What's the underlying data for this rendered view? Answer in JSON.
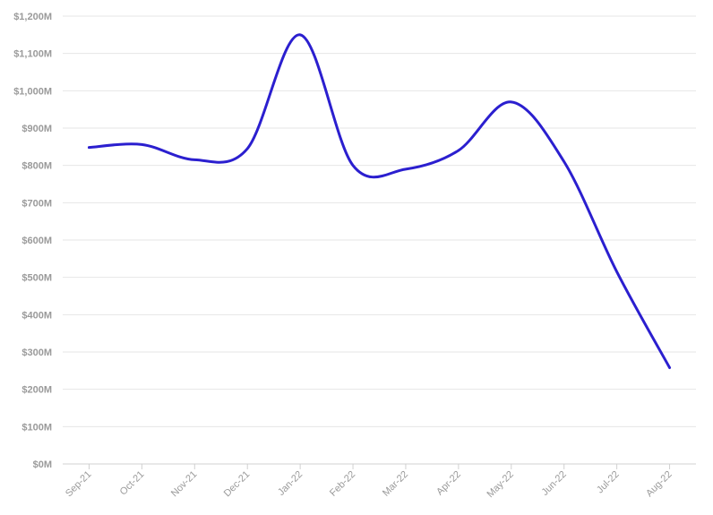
{
  "chart_data": {
    "type": "line",
    "title": "",
    "xlabel": "",
    "ylabel": "",
    "categories": [
      "Sep-21",
      "Oct-21",
      "Nov-21",
      "Dec-21",
      "Jan-22",
      "Feb-22",
      "Mar-22",
      "Apr-22",
      "May-22",
      "Jun-22",
      "Jul-22",
      "Aug-22"
    ],
    "series": [
      {
        "values": [
          848,
          856,
          815,
          845,
          1150,
          800,
          790,
          840,
          970,
          810,
          515,
          258
        ],
        "color": "#2b1fcf"
      }
    ],
    "ylim": [
      0,
      1200
    ],
    "y_ticks": [
      0,
      100,
      200,
      300,
      400,
      500,
      600,
      700,
      800,
      900,
      1000,
      1100,
      1200
    ],
    "y_tick_labels": [
      "$0M",
      "$100M",
      "$200M",
      "$300M",
      "$400M",
      "$500M",
      "$600M",
      "$700M",
      "$800M",
      "$900M",
      "$1,000M",
      "$1,100M",
      "$1,200M"
    ],
    "grid": true,
    "smooth": true,
    "legend": "none"
  }
}
